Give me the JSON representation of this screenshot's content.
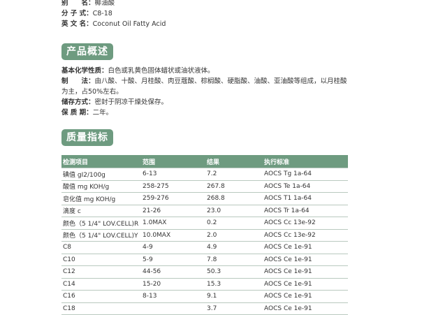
{
  "info": [
    {
      "label": "别　　名：",
      "value": "椰油酸"
    },
    {
      "label": "分 子 式：",
      "value": "C8-18"
    },
    {
      "label": "英 文 名：",
      "value": "Coconut Oil Fatty Acid"
    }
  ],
  "overview": {
    "title": "产品概述",
    "items": [
      {
        "label": "基本化学性质：",
        "value": "白色或乳黄色固体蜡状或油状液体。"
      },
      {
        "label": "制　　法：",
        "value": "由八酸、十酸、月桂酸、肉豆蔻酸、棕榈酸、硬脂酸、油酸、亚油酸等组成，以月桂酸为主，占50%左右。"
      },
      {
        "label": "储存方式：",
        "value": "密封于阴凉干燥处保存。"
      },
      {
        "label": "保 质 期：",
        "value": "二年。"
      }
    ]
  },
  "quality": {
    "title": "质量指标",
    "table": {
      "header": [
        "检测项目",
        "范围",
        "结果",
        "执行标准"
      ],
      "rows": [
        [
          "碘值 gI2/100g",
          "6-13",
          "7.2",
          "AOCS Tg 1a-64"
        ],
        [
          "酸值 mg KOH/g",
          "258-275",
          "267.8",
          "AOCS Te 1a-64"
        ],
        [
          "皂化值 mg KOH/g",
          "259-276",
          "268.8",
          "AOCS T1 1a-64"
        ],
        [
          "滴度 c",
          "21-26",
          "23.0",
          "AOCS Tr 1a-64"
        ],
        [
          "颜色（5 1/4\"  LOV.CELL)R",
          "1.0MAX",
          "0.2",
          "AOCS Cc 13e-92"
        ],
        [
          "颜色（5 1/4\"  LOV.CELL)Y",
          "10.0MAX",
          "2.0",
          "AOCS Cc 13e-92"
        ],
        [
          "C8",
          "4-9",
          "4.9",
          "AOCS Ce 1e-91"
        ],
        [
          "C10",
          "5-9",
          "7.8",
          "AOCS Ce 1e-91"
        ],
        [
          "C12",
          "44-56",
          "50.3",
          "AOCS Ce 1e-91"
        ],
        [
          "C14",
          "15-20",
          "15.3",
          "AOCS Ce 1e-91"
        ],
        [
          "C16",
          "8-13",
          "9.1",
          "AOCS Ce 1e-91"
        ],
        [
          "C18",
          null,
          "3.7",
          "AOCS Ce 1e-91"
        ]
      ]
    }
  }
}
